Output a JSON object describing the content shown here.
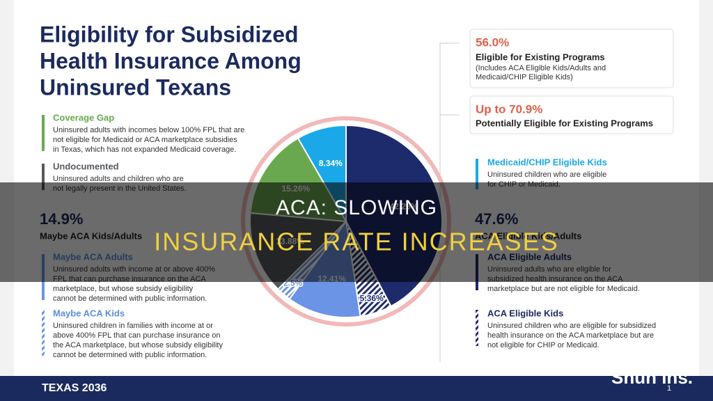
{
  "slide": {
    "title": [
      "Eligibility for Subsidized",
      "Health Insurance Among",
      "Uninsured Texans"
    ]
  },
  "left": {
    "coverage_gap": {
      "title": "Coverage Gap",
      "lines": [
        "Uninsured adults with incomes below 100% FPL that are",
        "not eligible for Medicaid or ACA marketplace subsidies",
        "in Texas, which has not expanded Medicaid coverage."
      ]
    },
    "undocumented": {
      "title": "Undocumented",
      "lines": [
        "Uninsured adults and children who are",
        "not legally present in the United States."
      ]
    },
    "stat": {
      "value": "14.9%",
      "label": "Maybe ACA Kids/Adults"
    },
    "maybe_adults": {
      "title": "Maybe ACA Adults",
      "lines": [
        "Uninsured adults with income at or above 400%",
        "FPL that can purchase insurance on the ACA",
        "marketplace, but whose subsidy eligibility",
        "cannot be determined with public information."
      ]
    },
    "maybe_kids": {
      "title": "Maybe ACA Kids",
      "lines": [
        "Uninsured children in families with income at or",
        "above 400% FPL that can purchase insurance on",
        "the ACA marketplace, but whose subsidy eligibility",
        "cannot be determined with public information."
      ]
    }
  },
  "right": {
    "box1": {
      "value": "56.0%",
      "label": "Eligible for Existing Programs",
      "lines": [
        "(Includes ACA Eligible Kids/Adults and",
        "Medicaid/CHIP Eligible Kids)"
      ]
    },
    "box2": {
      "value": "Up to 70.9%",
      "label": "Potentially Eligible for Existing Programs"
    },
    "medicaid_kids": {
      "title": "Medicaid/CHIP Eligible Kids",
      "lines": [
        "Uninsured children who are eligible",
        "for CHIP or Medicaid."
      ]
    },
    "stat": {
      "value": "47.6%",
      "label": "ACA Eligible Kids/Adults"
    },
    "aca_adults": {
      "title": "ACA Eligible Adults",
      "lines": [
        "Uninsured adults who are eligible for",
        "subsidized health insurance on the ACA",
        "marketplace but are not eligible for Medicaid."
      ]
    },
    "aca_kids": {
      "title": "ACA Eligible Kids",
      "lines": [
        "Uninsured children who are eligible for subsidized",
        "health insurance on the ACA marketplace but are",
        "not eligible for CHIP or Medicaid."
      ]
    }
  },
  "chart_data": {
    "type": "pie",
    "values": [
      42.26,
      5.36,
      12.41,
      2.5,
      13.88,
      15.26,
      8.34
    ],
    "value_labels": [
      "42.26%",
      "5.36%",
      "12.41%",
      "2.5%",
      "13.88%",
      "15.26%",
      "8.34%"
    ],
    "colors": [
      "#1d2a6b",
      "#1d2a6b",
      "#6b93e6",
      "#6b93e6",
      "#55595e",
      "#6aa84f",
      "#1ba8e8"
    ],
    "hatched": [
      false,
      true,
      false,
      true,
      false,
      false,
      false
    ]
  },
  "footer": {
    "logo": "TEXAS 2036",
    "page": "1"
  },
  "watermark": "Shun Ins.",
  "overlay": {
    "line1": "ACA: SLOWING",
    "line2": "INSURANCE RATE INCREASES"
  }
}
